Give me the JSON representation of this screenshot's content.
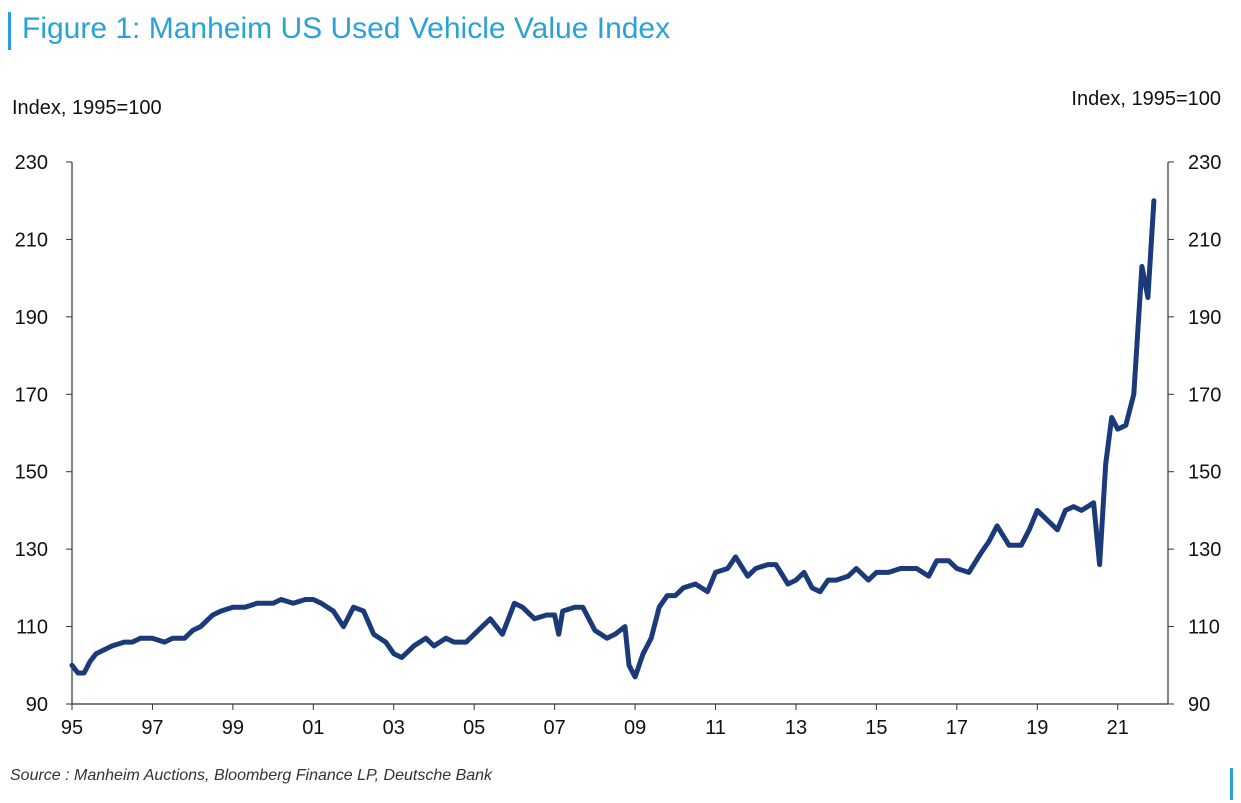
{
  "figure": {
    "title": "Figure 1: Manheim US Used Vehicle Value Index",
    "unit_left": "Index, 1995=100",
    "unit_right": "Index, 1995=100",
    "source": "Source : Manheim Auctions, Bloomberg Finance LP, Deutsche Bank"
  },
  "colors": {
    "title": "#2aa2d8",
    "line": "#1b3a7a",
    "axis": "#333333"
  },
  "chart_data": {
    "type": "line",
    "title": "Figure 1: Manheim US Used Vehicle Value Index",
    "ylabel": "Index, 1995=100",
    "y2label": "Index, 1995=100",
    "xlabel": "",
    "xlim": [
      1995,
      2022.25
    ],
    "ylim": [
      90,
      230
    ],
    "xticks": [
      1995,
      1997,
      1999,
      2001,
      2003,
      2005,
      2007,
      2009,
      2011,
      2013,
      2015,
      2017,
      2019,
      2021
    ],
    "xtick_labels": [
      "95",
      "97",
      "99",
      "01",
      "03",
      "05",
      "07",
      "09",
      "11",
      "13",
      "15",
      "17",
      "19",
      "21"
    ],
    "yticks": [
      90,
      110,
      130,
      150,
      170,
      190,
      210,
      230
    ],
    "ytick_labels": [
      "90",
      "110",
      "130",
      "150",
      "170",
      "190",
      "210",
      "230"
    ],
    "grid": false,
    "legend": "none",
    "series": [
      {
        "x": [
          1995.0,
          1995.15,
          1995.3,
          1995.45,
          1995.6,
          1995.8,
          1996.0,
          1996.3,
          1996.5,
          1996.7,
          1997.0,
          1997.3,
          1997.5,
          1997.8,
          1998.0,
          1998.2,
          1998.4,
          1998.5,
          1998.7,
          1999.0,
          1999.3,
          1999.6,
          2000.0,
          2000.2,
          2000.5,
          2000.8,
          2001.0,
          2001.2,
          2001.5,
          2001.75,
          2002.0,
          2002.25,
          2002.5,
          2002.8,
          2003.0,
          2003.2,
          2003.5,
          2003.8,
          2004.0,
          2004.3,
          2004.5,
          2004.8,
          2005.0,
          2005.2,
          2005.4,
          2005.7,
          2006.0,
          2006.2,
          2006.5,
          2006.8,
          2007.0,
          2007.1,
          2007.2,
          2007.5,
          2007.7,
          2008.0,
          2008.3,
          2008.5,
          2008.75,
          2008.85,
          2009.0,
          2009.2,
          2009.4,
          2009.6,
          2009.8,
          2010.0,
          2010.2,
          2010.5,
          2010.8,
          2011.0,
          2011.3,
          2011.5,
          2011.8,
          2012.0,
          2012.3,
          2012.5,
          2012.8,
          2013.0,
          2013.2,
          2013.4,
          2013.6,
          2013.8,
          2014.0,
          2014.3,
          2014.5,
          2014.8,
          2015.0,
          2015.3,
          2015.6,
          2016.0,
          2016.3,
          2016.5,
          2016.8,
          2017.0,
          2017.3,
          2017.6,
          2017.8,
          2018.0,
          2018.3,
          2018.6,
          2018.8,
          2019.0,
          2019.2,
          2019.5,
          2019.7,
          2019.9,
          2020.1,
          2020.25,
          2020.4,
          2020.55,
          2020.7,
          2020.85,
          2021.0,
          2021.2,
          2021.4,
          2021.6,
          2021.75,
          2021.9
        ],
        "y": [
          100,
          98,
          98,
          101,
          103,
          104,
          105,
          106,
          106,
          107,
          107,
          106,
          107,
          107,
          109,
          110,
          112,
          113,
          114,
          115,
          115,
          116,
          116,
          117,
          116,
          117,
          117,
          116,
          114,
          110,
          115,
          114,
          108,
          106,
          103,
          102,
          105,
          107,
          105,
          107,
          106,
          106,
          108,
          110,
          112,
          108,
          116,
          115,
          112,
          113,
          113,
          108,
          114,
          115,
          115,
          109,
          107,
          108,
          110,
          100,
          97,
          103,
          107,
          115,
          118,
          118,
          120,
          121,
          119,
          124,
          125,
          128,
          123,
          125,
          126,
          126,
          121,
          122,
          124,
          120,
          119,
          122,
          122,
          123,
          125,
          122,
          124,
          124,
          125,
          125,
          123,
          127,
          127,
          125,
          124,
          129,
          132,
          136,
          131,
          131,
          135,
          140,
          138,
          135,
          140,
          141,
          140,
          141,
          142,
          126,
          152,
          164,
          161,
          162,
          170,
          203,
          195,
          220
        ]
      }
    ]
  }
}
